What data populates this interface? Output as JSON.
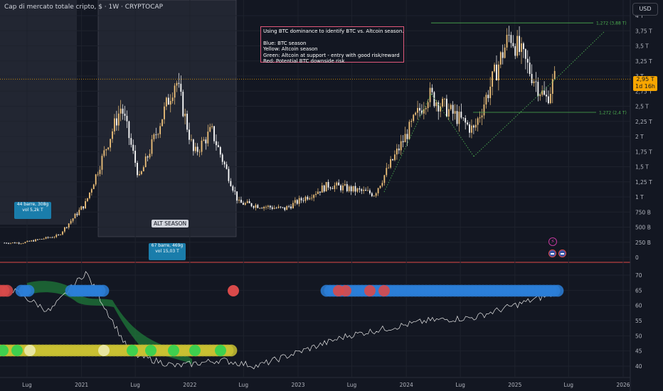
{
  "header": {
    "title": "Cap di mercato totale cripto, $ · 1W · CRYPTOCAP",
    "currency": "USD"
  },
  "annotation": {
    "lines": [
      "Using BTC dominance to identify BTC vs. Altcoin season.",
      "",
      "Blue: BTC season",
      "Yellow: Altcoin season",
      "Green: Altcoin at support - entry with good risk/reward",
      "Red: Potential BTC downside risk"
    ]
  },
  "price_tag": {
    "value": "2,95 T",
    "countdown": "1d 16h"
  },
  "measures": [
    {
      "bars": "44 barre, 308g",
      "vol": "vol 5,2k T"
    },
    {
      "bars": "67 barre, 469g",
      "vol": "vol 15,03 T"
    }
  ],
  "alt_season_label": "ALT SEASON",
  "fib_labels": [
    "1,272 (3,88 T)",
    "1,272 (2,4 T)"
  ],
  "event_badge": "⚡",
  "chart_data": [
    {
      "type": "candlestick",
      "title": "Cap di mercato totale cripto",
      "y_ticks": [
        "4 T",
        "3,75 T",
        "3,5 T",
        "3,25 T",
        "3 T",
        "2,75 T",
        "2,5 T",
        "2,25 T",
        "2 T",
        "1,75 T",
        "1,5 T",
        "1,25 T",
        "1 T",
        "750 B",
        "500 B",
        "250 B",
        "0"
      ],
      "ylim": [
        0,
        4000
      ],
      "unit": "B",
      "key_points": [
        {
          "date": "2020-06",
          "value": 240
        },
        {
          "date": "2020-10",
          "value": 360
        },
        {
          "date": "2021-01",
          "value": 900
        },
        {
          "date": "2021-05",
          "value": 2500
        },
        {
          "date": "2021-07",
          "value": 1300
        },
        {
          "date": "2021-11",
          "value": 2950
        },
        {
          "date": "2022-01",
          "value": 1700
        },
        {
          "date": "2022-03",
          "value": 2100
        },
        {
          "date": "2022-06",
          "value": 900
        },
        {
          "date": "2022-11",
          "value": 800
        },
        {
          "date": "2023-04",
          "value": 1200
        },
        {
          "date": "2023-09",
          "value": 1050
        },
        {
          "date": "2024-03",
          "value": 2700
        },
        {
          "date": "2024-08",
          "value": 2100
        },
        {
          "date": "2024-12",
          "value": 3700
        },
        {
          "date": "2025-04",
          "value": 2600
        },
        {
          "date": "2025-05",
          "value": 2950
        }
      ],
      "current_value": 2950,
      "fib_levels": [
        3880,
        2400
      ]
    },
    {
      "type": "line",
      "series_description": "BTC dominance (%)",
      "y_ticks": [
        "70",
        "65",
        "60",
        "55",
        "50",
        "45",
        "40"
      ],
      "ylim": [
        38,
        73
      ],
      "key_points": [
        {
          "date": "2020-05",
          "value": 65
        },
        {
          "date": "2020-09",
          "value": 58
        },
        {
          "date": "2021-01",
          "value": 71
        },
        {
          "date": "2021-06",
          "value": 44
        },
        {
          "date": "2021-11",
          "value": 40
        },
        {
          "date": "2022-04",
          "value": 42
        },
        {
          "date": "2022-08",
          "value": 40
        },
        {
          "date": "2023-06",
          "value": 50
        },
        {
          "date": "2024-03",
          "value": 55
        },
        {
          "date": "2024-08",
          "value": 56
        },
        {
          "date": "2025-05",
          "value": 64
        }
      ],
      "band_colors": {
        "blue": "#2b7fd8",
        "yellow": "#c9c132",
        "green": "#3fcf4e",
        "red": "#d94a4a"
      }
    }
  ],
  "x_ticks": [
    "Lug",
    "2021",
    "Lug",
    "2022",
    "Lug",
    "2023",
    "Lug",
    "2024",
    "Lug",
    "2025",
    "Lug",
    "2026"
  ]
}
